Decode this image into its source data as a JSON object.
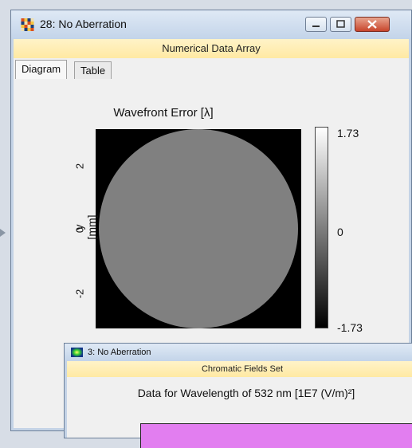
{
  "window": {
    "title": "28: No Aberration",
    "subtitle": "Numerical Data Array",
    "tabs": [
      {
        "label": "Diagram",
        "active": true
      },
      {
        "label": "Table",
        "active": false
      }
    ]
  },
  "diagram": {
    "title": "Wavefront Error [λ]",
    "y_axis_label": "y [mm]",
    "y_ticks": [
      "2",
      "0",
      "-2"
    ],
    "colorbar_labels": [
      "1.73",
      "0",
      "-1.73"
    ],
    "colormap": "grayscale",
    "aperture_color": "#808080",
    "background_color": "#000000"
  },
  "window2": {
    "title": "3: No Aberration",
    "subtitle": "Chromatic Fields Set",
    "data_title": "Data for Wavelength of 532 nm  [1E7 (V/m)²]",
    "plot_color": "#e27ef0"
  },
  "colors": {
    "header_bar": "#ffeeb5",
    "close_button": "#c8452c"
  }
}
